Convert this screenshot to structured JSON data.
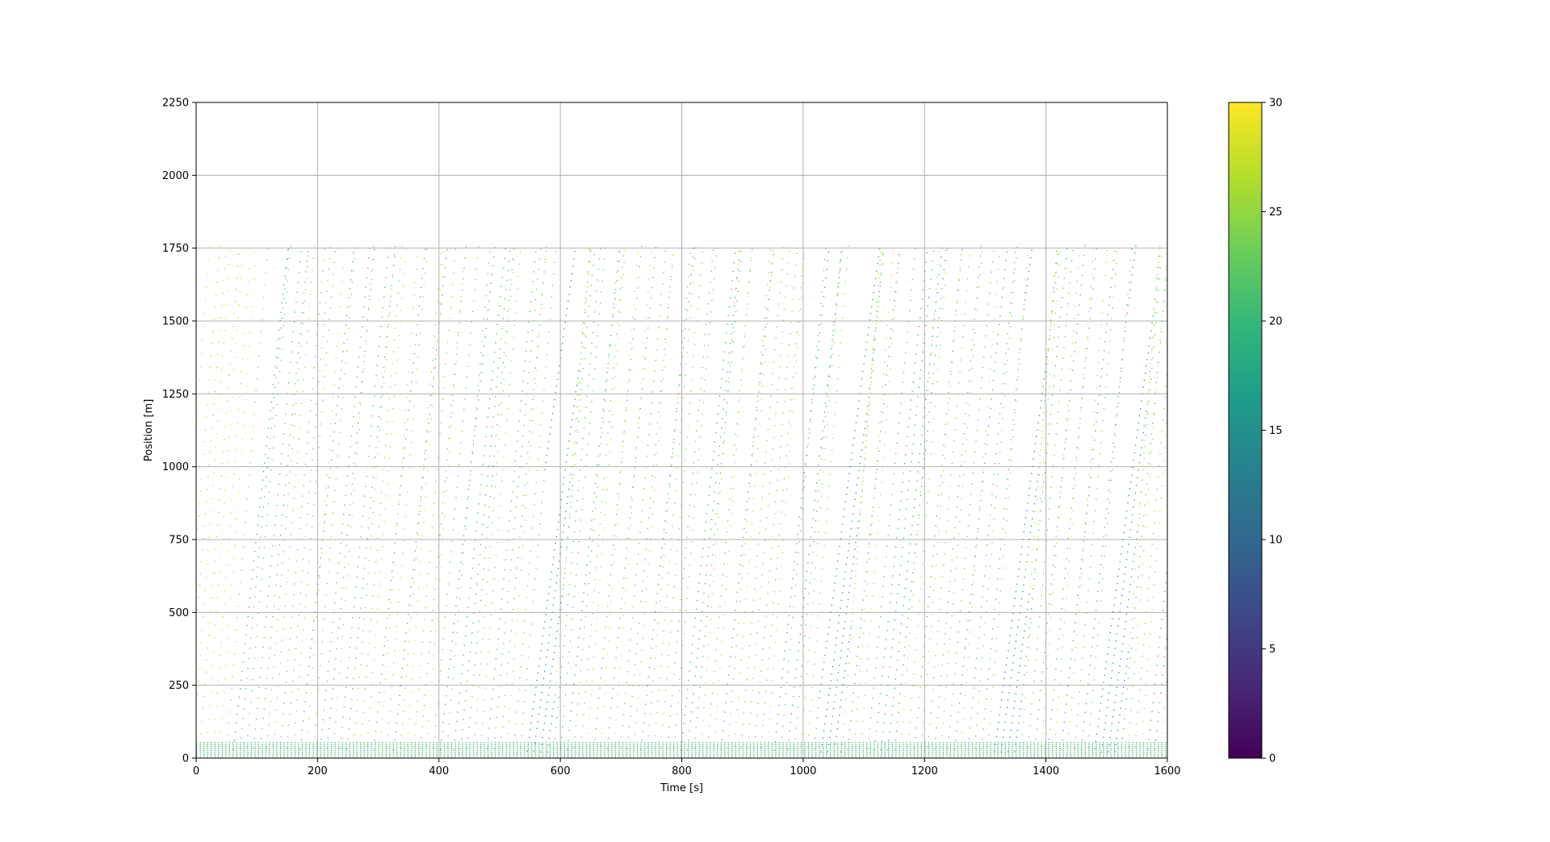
{
  "chart_data": {
    "type": "scatter",
    "title": "",
    "xlabel": "Time [s]",
    "ylabel": "Position [m]",
    "xlim": [
      0,
      1600
    ],
    "ylim": [
      0,
      2250
    ],
    "xticks": [
      "0",
      "200",
      "400",
      "600",
      "800",
      "1000",
      "1200",
      "1400",
      "1600"
    ],
    "yticks": [
      "0",
      "250",
      "500",
      "750",
      "1000",
      "1250",
      "1500",
      "1750",
      "2000",
      "2250"
    ],
    "grid": true,
    "colorbar": {
      "colormap": "viridis",
      "range": [
        0,
        30
      ],
      "ticks": [
        "0",
        "5",
        "10",
        "15",
        "20",
        "25",
        "30"
      ]
    },
    "road_end_position": 1750,
    "trajectory_speed_range": [
      15,
      30
    ],
    "slow_wave_start_times": [
      560,
      1040,
      1330,
      1500
    ],
    "colors": {
      "viridis_stops": [
        "#440154",
        "#482878",
        "#3e4989",
        "#31688e",
        "#26828e",
        "#1f9e89",
        "#35b779",
        "#6ece58",
        "#b5de2b",
        "#fde725"
      ]
    }
  }
}
